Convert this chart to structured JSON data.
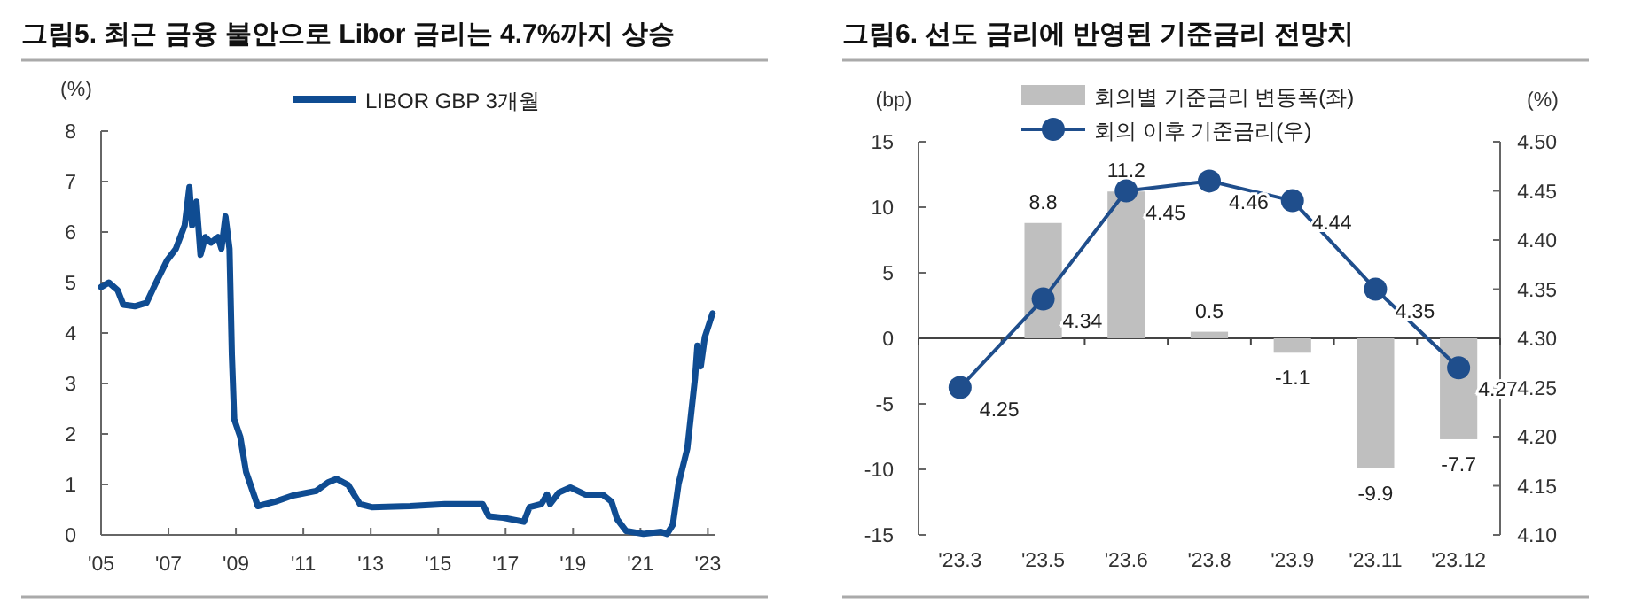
{
  "chart_data": [
    {
      "type": "line",
      "title": "그림5. 최근 금융 불안으로 Libor 금리는 4.7%까지 상승",
      "ylabel": "(%)",
      "legend": "top",
      "xlim": [
        2005,
        2023.2
      ],
      "xticks": [
        {
          "value": 2005,
          "label": "'05"
        },
        {
          "value": 2007,
          "label": "'07"
        },
        {
          "value": 2009,
          "label": "'09"
        },
        {
          "value": 2011,
          "label": "'11"
        },
        {
          "value": 2013,
          "label": "'13"
        },
        {
          "value": 2015,
          "label": "'15"
        },
        {
          "value": 2017,
          "label": "'17"
        },
        {
          "value": 2019,
          "label": "'19"
        },
        {
          "value": 2021,
          "label": "'21"
        },
        {
          "value": 2023,
          "label": "'23"
        }
      ],
      "ylim": [
        0,
        8
      ],
      "yticks": [
        0,
        1,
        2,
        3,
        4,
        5,
        6,
        7,
        8
      ],
      "series": [
        {
          "name": "LIBOR GBP 3개월",
          "color": "#0f4c92",
          "x": [
            2005.0,
            2005.23,
            2005.49,
            2005.66,
            2006.0,
            2006.35,
            2006.61,
            2006.96,
            2007.22,
            2007.48,
            2007.62,
            2007.7,
            2007.83,
            2007.95,
            2008.09,
            2008.26,
            2008.47,
            2008.57,
            2008.69,
            2008.81,
            2008.88,
            2008.95,
            2009.13,
            2009.3,
            2009.65,
            2010.17,
            2010.69,
            2011.38,
            2011.73,
            2011.99,
            2012.33,
            2012.68,
            2013.03,
            2014.16,
            2015.2,
            2016.32,
            2016.5,
            2016.93,
            2017.54,
            2017.71,
            2018.06,
            2018.23,
            2018.32,
            2018.58,
            2018.92,
            2019.36,
            2019.88,
            2020.14,
            2020.31,
            2020.57,
            2021.09,
            2021.61,
            2021.79,
            2021.96,
            2022.13,
            2022.39,
            2022.62,
            2022.69,
            2022.79,
            2022.91,
            2023.14
          ],
          "values": [
            4.91,
            5.0,
            4.85,
            4.56,
            4.53,
            4.6,
            4.97,
            5.44,
            5.67,
            6.13,
            6.89,
            6.13,
            6.6,
            5.55,
            5.9,
            5.79,
            5.9,
            5.67,
            6.31,
            5.67,
            3.57,
            2.29,
            1.94,
            1.25,
            0.57,
            0.66,
            0.78,
            0.87,
            1.04,
            1.11,
            0.99,
            0.61,
            0.55,
            0.57,
            0.61,
            0.61,
            0.37,
            0.34,
            0.26,
            0.55,
            0.61,
            0.8,
            0.61,
            0.84,
            0.94,
            0.8,
            0.8,
            0.66,
            0.31,
            0.08,
            0.02,
            0.06,
            0.02,
            0.2,
            1.01,
            1.71,
            3.11,
            3.75,
            3.34,
            3.92,
            4.39
          ]
        }
      ]
    },
    {
      "type": "bar",
      "title": "그림6. 선도 금리에 반영된 기준금리 전망치",
      "ylabel": "(bp)",
      "y2label": "(%)",
      "legend": "top",
      "data_labels": true,
      "categories": [
        "'23.3",
        "'23.5",
        "'23.6",
        "'23.8",
        "'23.9",
        "'23.11",
        "'23.12"
      ],
      "ylim": [
        -15,
        15
      ],
      "yticks": [
        -15,
        -10,
        -5,
        0,
        5,
        10,
        15
      ],
      "y2lim": [
        4.1,
        4.5
      ],
      "y2ticks": [
        {
          "value": 4.1,
          "label": "4.10"
        },
        4.15,
        {
          "value": 4.2,
          "label": "4.20"
        },
        4.25,
        {
          "value": 4.3,
          "label": "4.30"
        },
        4.35,
        {
          "value": 4.4,
          "label": "4.40"
        },
        4.45,
        {
          "value": 4.5,
          "label": "4.50"
        }
      ],
      "series": [
        {
          "name": "회의별 기준금리 변동폭(좌)",
          "color": "#bfbfbf",
          "values": [
            null,
            8.8,
            11.2,
            0.5,
            -1.1,
            -9.9,
            -7.7
          ]
        },
        {
          "name": "회의 이후 기준금리(우)",
          "type": "line",
          "axis": "y2",
          "marker": "circle",
          "color": "#1f4e8c",
          "values": [
            4.25,
            4.34,
            4.45,
            4.46,
            4.44,
            4.35,
            4.27
          ]
        }
      ]
    }
  ]
}
